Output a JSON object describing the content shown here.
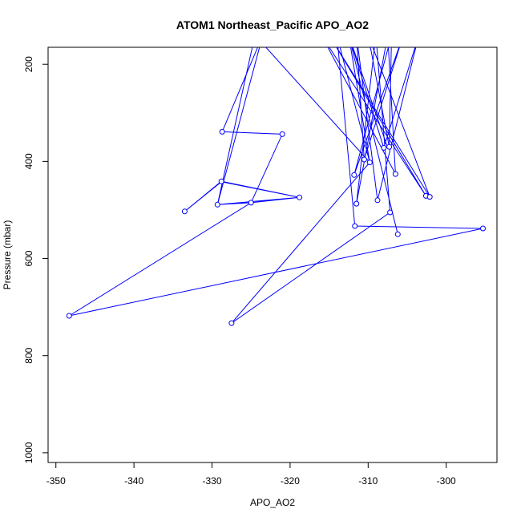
{
  "chart_data": {
    "type": "line",
    "title": "ATOM1 Northeast_Pacific APO_AO2",
    "xlabel": "APO_AO2",
    "ylabel": "Pressure (mbar)",
    "xlim": [
      -351,
      -293.5
    ],
    "ylim": [
      1020,
      165
    ],
    "y_inverted": true,
    "grid": false,
    "x_ticks": [
      -350,
      -340,
      -330,
      -320,
      -310,
      -300
    ],
    "y_ticks": [
      200,
      400,
      600,
      800,
      1000
    ],
    "colors": {
      "series": "#0000ff",
      "axis": "#000000"
    },
    "series": [
      {
        "points": [
          [
            -306.2,
            550
          ],
          [
            -312.5,
            140
          ],
          [
            -308,
            372
          ],
          [
            -303.5,
            140
          ],
          [
            -308.8,
            480
          ],
          [
            -311.5,
            140
          ],
          [
            -310.5,
            396
          ],
          [
            -305.5,
            140
          ],
          [
            -311.8,
            428
          ],
          [
            -307.0,
            140
          ],
          [
            -307.3,
            370
          ],
          [
            -310.0,
            140
          ],
          [
            -302.1,
            473
          ],
          [
            -315.0,
            140
          ],
          [
            -302.6,
            471
          ],
          [
            -316.0,
            140
          ],
          [
            -306.5,
            426
          ],
          [
            -307.5,
            140
          ],
          [
            -311.5,
            487
          ],
          [
            -309.0,
            140
          ],
          [
            -307.2,
            505
          ],
          [
            -327.5,
            733
          ],
          [
            -309.8,
            402
          ],
          [
            -314.0,
            140
          ],
          [
            -311.7,
            533
          ],
          [
            -295.3,
            538
          ],
          [
            -348.3,
            718
          ],
          [
            -325.0,
            485
          ],
          [
            -318.8,
            474
          ],
          [
            -328.8,
            441
          ],
          [
            -333.5,
            503
          ],
          [
            -328.8,
            442
          ],
          [
            -318.8,
            474
          ],
          [
            -329.3,
            489
          ],
          [
            -325.0,
            485
          ],
          [
            -321.0,
            344
          ],
          [
            -328.7,
            339
          ],
          [
            -323.5,
            140
          ],
          [
            -329.3,
            489
          ],
          [
            -324.5,
            140
          ],
          [
            -309.8,
            402
          ],
          [
            -312.5,
            140
          ],
          [
            -307.5,
            372
          ]
        ],
        "markers": [
          [
            -306.2,
            550
          ],
          [
            -308.8,
            480
          ],
          [
            -307.3,
            370
          ],
          [
            -308.0,
            372
          ],
          [
            -310.5,
            396
          ],
          [
            -311.8,
            428
          ],
          [
            -306.5,
            426
          ],
          [
            -302.6,
            471
          ],
          [
            -302.1,
            473
          ],
          [
            -311.5,
            487
          ],
          [
            -307.2,
            505
          ],
          [
            -327.5,
            733
          ],
          [
            -309.8,
            402
          ],
          [
            -311.7,
            533
          ],
          [
            -295.3,
            538
          ],
          [
            -348.3,
            718
          ],
          [
            -325.0,
            485
          ],
          [
            -318.8,
            474
          ],
          [
            -328.8,
            441
          ],
          [
            -333.5,
            503
          ],
          [
            -329.3,
            489
          ],
          [
            -321.0,
            344
          ],
          [
            -328.7,
            339
          ]
        ]
      }
    ]
  }
}
